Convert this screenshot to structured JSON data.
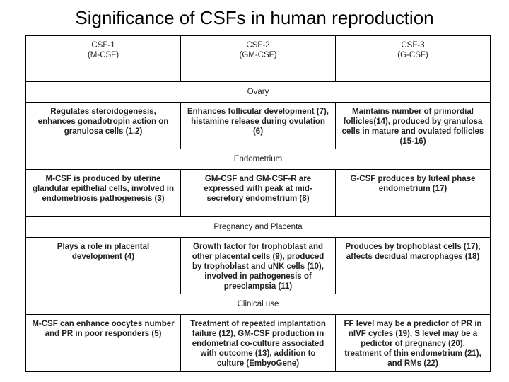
{
  "header": {
    "title": "Significance of CSFs in human reproduction"
  },
  "table": {
    "columns": [
      {
        "name": "CSF-1",
        "alt": "(M-CSF)"
      },
      {
        "name": "CSF-2",
        "alt": "(GM-CSF)"
      },
      {
        "name": "CSF-3",
        "alt": "(G-CSF)"
      }
    ],
    "sections": [
      {
        "label": "Ovary",
        "cells": [
          "Regulates steroidogenesis, enhances gonadotropin action on granulosa cells (1,2)",
          "Enhances follicular development (7), histamine release during ovulation (6)",
          "Maintains number of primordial follicles(14), produced by granulosa cells in mature and ovulated follicles (15-16)"
        ]
      },
      {
        "label": "Endometrium",
        "cells": [
          "M-CSF is produced by uterine glandular epithelial cells, involved in endometriosis pathogenesis (3)",
          "GM-CSF and GM-CSF-R  are expressed with peak at mid-secretory endometrium (8)",
          "G-CSF produces by luteal phase endometrium (17)"
        ]
      },
      {
        "label": "Pregnancy and Placenta",
        "cells": [
          "Plays a role in placental development (4)",
          "Growth factor for trophoblast and other placental cells (9), produced by trophoblast and uNK cells (10), involved in pathogenesis of preeclampsia (11)",
          "Produces by trophoblast cells (17), affects decidual macrophages (18)"
        ]
      },
      {
        "label": "Clinical use",
        "cells": [
          "M-CSF can enhance oocytes number and PR in poor responders (5)",
          "Treatment of repeated implantation failure (12), GM-CSF production in endometrial co-culture associated with outcome (13), addition to culture (EmbyoGene)",
          "FF level may be a predictor of PR in nIVF cycles (19), S level may be a pedictor of pregnancy (20), treatment of thin endometrium (21), and RMs (22)"
        ]
      }
    ]
  }
}
